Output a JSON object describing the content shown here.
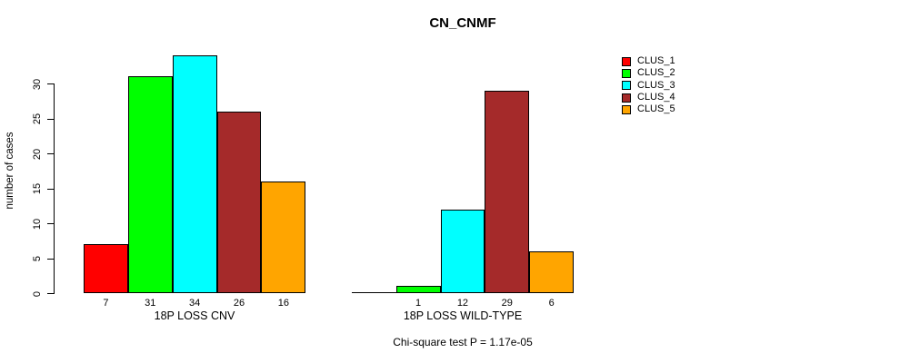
{
  "chart_data": {
    "type": "bar",
    "title": "CN_CNMF",
    "ylabel": "number of cases",
    "ylim": [
      0,
      34
    ],
    "yticks": [
      0,
      5,
      10,
      15,
      20,
      25,
      30
    ],
    "grid": false,
    "legend_position": "right",
    "categories": [
      "CLUS_1",
      "CLUS_2",
      "CLUS_3",
      "CLUS_4",
      "CLUS_5"
    ],
    "legend": [
      {
        "label": "CLUS_1",
        "color": "#FF0000"
      },
      {
        "label": "CLUS_2",
        "color": "#00FF00"
      },
      {
        "label": "CLUS_3",
        "color": "#00FFFF"
      },
      {
        "label": "CLUS_4",
        "color": "#A52A2A"
      },
      {
        "label": "CLUS_5",
        "color": "#FFA500"
      }
    ],
    "groups": [
      {
        "label": "18P LOSS CNV",
        "values": [
          7,
          31,
          34,
          26,
          16
        ],
        "bar_labels": [
          "7",
          "31",
          "34",
          "26",
          "16"
        ]
      },
      {
        "label": "18P LOSS WILD-TYPE",
        "values": [
          0,
          1,
          12,
          29,
          6
        ],
        "bar_labels": [
          "",
          "1",
          "12",
          "29",
          "6"
        ]
      }
    ],
    "annotation": "Chi-square test P = 1.17e-05"
  }
}
